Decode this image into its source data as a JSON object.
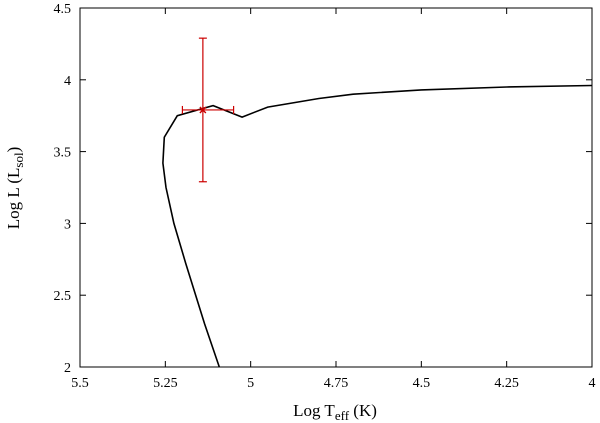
{
  "chart_data": {
    "type": "line",
    "xlabel": {
      "main": "Log T",
      "sub": "eff",
      "tail": " (K)"
    },
    "ylabel": {
      "main": "Log L (L",
      "sub": "sol",
      "tail": ")"
    },
    "xlim": [
      5.5,
      4.0
    ],
    "ylim": [
      2.0,
      4.5
    ],
    "x_reversed": true,
    "x_ticks": [
      5.5,
      5.25,
      5.0,
      4.75,
      4.5,
      4.25,
      4.0
    ],
    "x_tick_labels": [
      "5.5",
      "5.25",
      "5",
      "4.75",
      "4.5",
      "4.25",
      "4"
    ],
    "y_ticks": [
      2.0,
      2.5,
      3.0,
      3.5,
      4.0,
      4.5
    ],
    "y_tick_labels": [
      "2",
      "2.5",
      "3",
      "3.5",
      "4",
      "4.5"
    ],
    "grid": false,
    "series": [
      {
        "color": "#000000",
        "points": [
          [
            5.092,
            2.0
          ],
          [
            5.135,
            2.3
          ],
          [
            5.19,
            2.72
          ],
          [
            5.225,
            3.0
          ],
          [
            5.248,
            3.25
          ],
          [
            5.257,
            3.42
          ],
          [
            5.253,
            3.6
          ],
          [
            5.215,
            3.75
          ],
          [
            5.11,
            3.82
          ],
          [
            5.025,
            3.74
          ],
          [
            4.95,
            3.81
          ],
          [
            4.8,
            3.87
          ],
          [
            4.7,
            3.9
          ],
          [
            4.5,
            3.93
          ],
          [
            4.25,
            3.95
          ],
          [
            4.0,
            3.96
          ]
        ]
      }
    ],
    "observation": {
      "color": "#cc0000",
      "x": 5.14,
      "y": 3.79,
      "x_err": [
        5.2,
        5.05
      ],
      "y_err": [
        3.29,
        4.29
      ]
    }
  }
}
